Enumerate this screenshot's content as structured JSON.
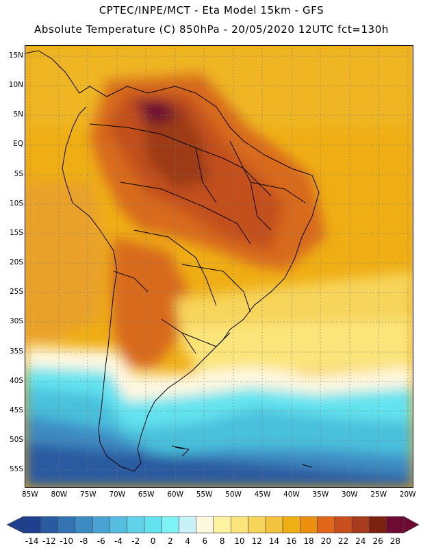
{
  "header": {
    "line1": "CPTEC/INPE/MCT -  Eta Model 15km - GFS",
    "line2": "Absolute Temperature (C) 850hPa - 20/05/2020 12UTC fct=130h"
  },
  "map": {
    "lat_labels": [
      "15N",
      "10N",
      "5N",
      "EQ",
      "5S",
      "10S",
      "15S",
      "20S",
      "25S",
      "30S",
      "35S",
      "40S",
      "45S",
      "50S",
      "55S"
    ],
    "lon_labels": [
      "85W",
      "80W",
      "75W",
      "70W",
      "65W",
      "60W",
      "55W",
      "50W",
      "45W",
      "40W",
      "35W",
      "30W",
      "25W",
      "20W"
    ],
    "gridlines": "dotted"
  },
  "legend": {
    "tick_labels": [
      "-14",
      "-12",
      "-10",
      "-8",
      "-6",
      "-4",
      "-2",
      "0",
      "2",
      "4",
      "6",
      "8",
      "10",
      "12",
      "14",
      "16",
      "18",
      "20",
      "22",
      "24",
      "26",
      "28"
    ],
    "colors": [
      "#1f3f8f",
      "#2a5aa0",
      "#3473b3",
      "#3e8bc3",
      "#48a2d2",
      "#55bde0",
      "#5fd3ea",
      "#63e3ef",
      "#7ef3f5",
      "#c8f2f8",
      "#fff8e0",
      "#fdf3a0",
      "#fbe57a",
      "#f7d45a",
      "#f2c33c",
      "#efae14",
      "#ec9010",
      "#e0661a",
      "#c94f1e",
      "#a83b1c",
      "#7c2010",
      "#6e0b32"
    ]
  }
}
